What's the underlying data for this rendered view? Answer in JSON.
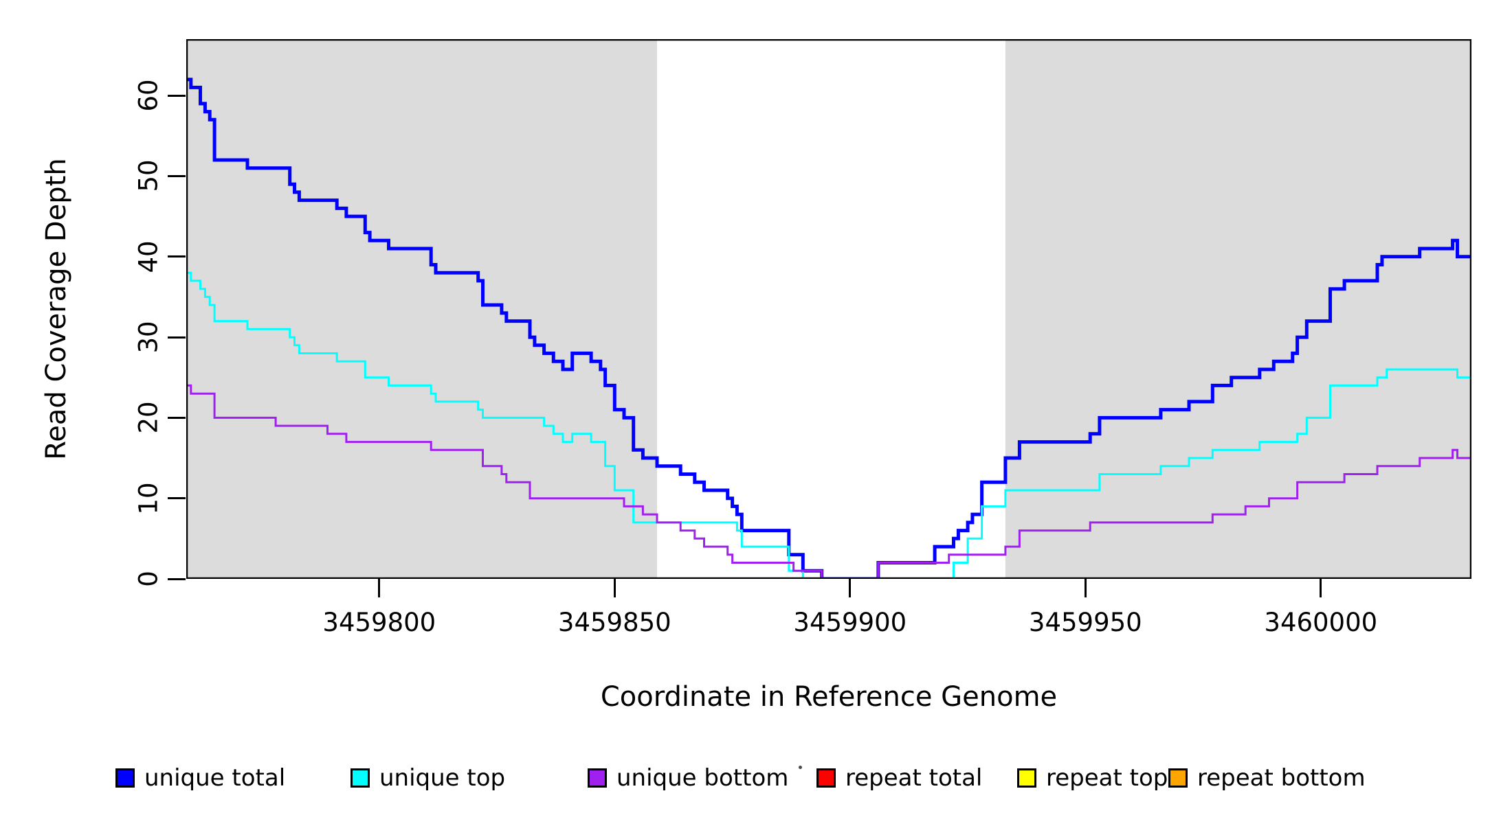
{
  "figure": {
    "x_axis_title": "Coordinate in Reference Genome",
    "y_axis_title": "Read Coverage Depth"
  },
  "legend": {
    "items": [
      {
        "label": "unique total",
        "color": "#0000FF"
      },
      {
        "label": "unique top",
        "color": "#00FFFF"
      },
      {
        "label": "unique bottom",
        "color": "#A020F0"
      },
      {
        "label": "repeat total",
        "color": "#FF0000"
      },
      {
        "label": "repeat top",
        "color": "#FFFF00"
      },
      {
        "label": "repeat bottom",
        "color": "#FFA500"
      }
    ]
  },
  "chart_data": {
    "type": "line",
    "subtype": "step",
    "title": "",
    "xlabel": "Coordinate in Reference Genome",
    "ylabel": "Read Coverage Depth",
    "xlim": [
      3459759,
      3460032
    ],
    "ylim": [
      0,
      67
    ],
    "grid": false,
    "legend_position": "bottom-horizontal",
    "plot_background": "#FFFFFF",
    "shaded_regions": [
      {
        "x0": 3459759,
        "x1": 3459859,
        "color": "#DCDCDC",
        "meaning": "unique region"
      },
      {
        "x0": 3459933,
        "x1": 3460032,
        "color": "#DCDCDC",
        "meaning": "unique region"
      }
    ],
    "x_ticks": [
      {
        "value": 3459800,
        "label": "3459800"
      },
      {
        "value": 3459850,
        "label": "3459850"
      },
      {
        "value": 3459900,
        "label": "3459900"
      },
      {
        "value": 3459950,
        "label": "3459950"
      },
      {
        "value": 3460000,
        "label": "3460000"
      }
    ],
    "y_ticks": [
      {
        "value": 0,
        "label": "0"
      },
      {
        "value": 10,
        "label": "10"
      },
      {
        "value": 20,
        "label": "20"
      },
      {
        "value": 30,
        "label": "30"
      },
      {
        "value": 40,
        "label": "40"
      },
      {
        "value": 50,
        "label": "50"
      },
      {
        "value": 60,
        "label": "60"
      }
    ],
    "series": [
      {
        "name": "repeat total",
        "color": "#FF0000",
        "width": 3,
        "points": [
          [
            3459759,
            0
          ]
        ]
      },
      {
        "name": "repeat top",
        "color": "#FFFF00",
        "width": 3,
        "points": [
          [
            3459759,
            0
          ]
        ]
      },
      {
        "name": "repeat bottom",
        "color": "#FFA500",
        "width": 4,
        "points": [
          [
            3459759,
            0
          ]
        ]
      },
      {
        "name": "unique total",
        "color": "#0000FF",
        "width": 5,
        "points": [
          [
            3459759,
            62
          ],
          [
            3459760,
            61
          ],
          [
            3459762,
            59
          ],
          [
            3459763,
            58
          ],
          [
            3459764,
            57
          ],
          [
            3459765,
            52
          ],
          [
            3459772,
            51
          ],
          [
            3459781,
            49
          ],
          [
            3459782,
            48
          ],
          [
            3459783,
            47
          ],
          [
            3459791,
            46
          ],
          [
            3459793,
            45
          ],
          [
            3459797,
            43
          ],
          [
            3459798,
            42
          ],
          [
            3459802,
            41
          ],
          [
            3459811,
            39
          ],
          [
            3459812,
            38
          ],
          [
            3459821,
            37
          ],
          [
            3459822,
            34
          ],
          [
            3459826,
            33
          ],
          [
            3459827,
            32
          ],
          [
            3459832,
            30
          ],
          [
            3459833,
            29
          ],
          [
            3459835,
            28
          ],
          [
            3459837,
            27
          ],
          [
            3459839,
            26
          ],
          [
            3459841,
            28
          ],
          [
            3459845,
            27
          ],
          [
            3459847,
            26
          ],
          [
            3459848,
            24
          ],
          [
            3459850,
            21
          ],
          [
            3459852,
            20
          ],
          [
            3459854,
            16
          ],
          [
            3459856,
            15
          ],
          [
            3459859,
            14
          ],
          [
            3459864,
            13
          ],
          [
            3459867,
            12
          ],
          [
            3459869,
            11
          ],
          [
            3459874,
            10
          ],
          [
            3459875,
            9
          ],
          [
            3459876,
            8
          ],
          [
            3459877,
            6
          ],
          [
            3459887,
            3
          ],
          [
            3459890,
            1
          ],
          [
            3459894,
            0
          ],
          [
            3459906,
            2
          ],
          [
            3459918,
            4
          ],
          [
            3459922,
            5
          ],
          [
            3459923,
            6
          ],
          [
            3459925,
            7
          ],
          [
            3459926,
            8
          ],
          [
            3459928,
            12
          ],
          [
            3459933,
            15
          ],
          [
            3459936,
            17
          ],
          [
            3459951,
            18
          ],
          [
            3459953,
            20
          ],
          [
            3459966,
            21
          ],
          [
            3459972,
            22
          ],
          [
            3459977,
            24
          ],
          [
            3459981,
            25
          ],
          [
            3459987,
            26
          ],
          [
            3459990,
            27
          ],
          [
            3459994,
            28
          ],
          [
            3459995,
            30
          ],
          [
            3459997,
            32
          ],
          [
            3460002,
            36
          ],
          [
            3460005,
            37
          ],
          [
            3460012,
            39
          ],
          [
            3460013,
            40
          ],
          [
            3460021,
            41
          ],
          [
            3460028,
            42
          ],
          [
            3460029,
            40
          ]
        ]
      },
      {
        "name": "unique top",
        "color": "#00FFFF",
        "width": 3,
        "points": [
          [
            3459759,
            38
          ],
          [
            3459760,
            37
          ],
          [
            3459762,
            36
          ],
          [
            3459763,
            35
          ],
          [
            3459764,
            34
          ],
          [
            3459765,
            32
          ],
          [
            3459772,
            31
          ],
          [
            3459781,
            30
          ],
          [
            3459782,
            29
          ],
          [
            3459783,
            28
          ],
          [
            3459791,
            27
          ],
          [
            3459797,
            25
          ],
          [
            3459802,
            24
          ],
          [
            3459811,
            23
          ],
          [
            3459812,
            22
          ],
          [
            3459821,
            21
          ],
          [
            3459822,
            20
          ],
          [
            3459835,
            19
          ],
          [
            3459837,
            18
          ],
          [
            3459839,
            17
          ],
          [
            3459841,
            18
          ],
          [
            3459845,
            17
          ],
          [
            3459848,
            14
          ],
          [
            3459850,
            11
          ],
          [
            3459854,
            7
          ],
          [
            3459876,
            6
          ],
          [
            3459877,
            4
          ],
          [
            3459887,
            1
          ],
          [
            3459890,
            0
          ],
          [
            3459922,
            2
          ],
          [
            3459925,
            5
          ],
          [
            3459928,
            9
          ],
          [
            3459933,
            11
          ],
          [
            3459953,
            13
          ],
          [
            3459966,
            14
          ],
          [
            3459972,
            15
          ],
          [
            3459977,
            16
          ],
          [
            3459987,
            17
          ],
          [
            3459995,
            18
          ],
          [
            3459997,
            20
          ],
          [
            3460002,
            24
          ],
          [
            3460012,
            25
          ],
          [
            3460014,
            26
          ],
          [
            3460029,
            25
          ]
        ]
      },
      {
        "name": "unique bottom",
        "color": "#A020F0",
        "width": 3,
        "points": [
          [
            3459759,
            24
          ],
          [
            3459760,
            23
          ],
          [
            3459765,
            20
          ],
          [
            3459778,
            19
          ],
          [
            3459789,
            18
          ],
          [
            3459793,
            17
          ],
          [
            3459811,
            16
          ],
          [
            3459822,
            14
          ],
          [
            3459826,
            13
          ],
          [
            3459827,
            12
          ],
          [
            3459832,
            10
          ],
          [
            3459852,
            9
          ],
          [
            3459856,
            8
          ],
          [
            3459859,
            7
          ],
          [
            3459864,
            6
          ],
          [
            3459867,
            5
          ],
          [
            3459869,
            4
          ],
          [
            3459874,
            3
          ],
          [
            3459875,
            2
          ],
          [
            3459888,
            1
          ],
          [
            3459894,
            0
          ],
          [
            3459906,
            2
          ],
          [
            3459921,
            3
          ],
          [
            3459933,
            4
          ],
          [
            3459936,
            6
          ],
          [
            3459951,
            7
          ],
          [
            3459977,
            8
          ],
          [
            3459984,
            9
          ],
          [
            3459989,
            10
          ],
          [
            3459995,
            12
          ],
          [
            3460005,
            13
          ],
          [
            3460012,
            14
          ],
          [
            3460021,
            15
          ],
          [
            3460028,
            16
          ],
          [
            3460029,
            15
          ]
        ]
      }
    ]
  }
}
